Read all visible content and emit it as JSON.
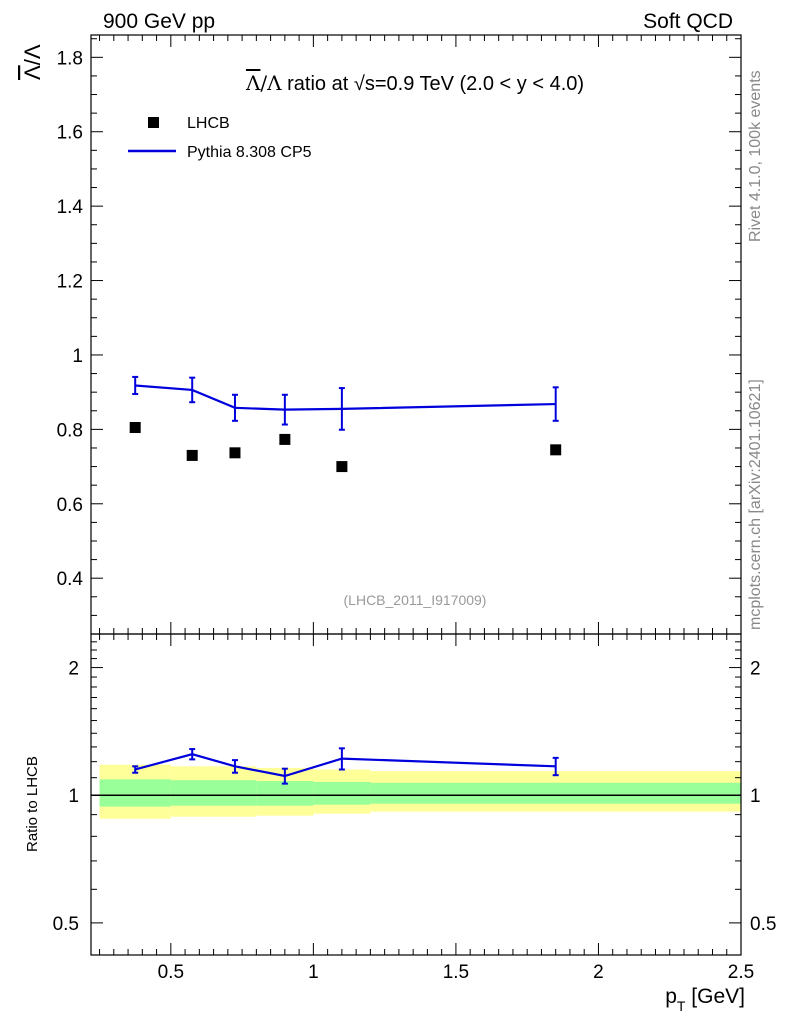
{
  "header": {
    "left": "900 GeV pp",
    "right": "Soft QCD"
  },
  "side_text": {
    "rivet": "Rivet 4.1.0,  100k events",
    "source": "mcplots.cern.ch [arXiv:2401.10621]"
  },
  "chart_data": [
    {
      "type": "scatter",
      "panel": "main",
      "title_main": "ratio at ",
      "title_sqrt": "√",
      "title_tail": "s=0.9 TeV (2.0 < y < 4.0)",
      "ylabel_main": "Λ",
      "ylabel_rest": "/Λ",
      "watermark": "(LHCB_2011_I917009)",
      "xlim": [
        0.22,
        2.5
      ],
      "ylim": [
        0.25,
        1.86
      ],
      "yticks": [
        0.4,
        0.6,
        0.8,
        1.0,
        1.2,
        1.4,
        1.6,
        1.8
      ],
      "ytick_labels": [
        "0.4",
        "0.6",
        "0.8",
        "1",
        "1.2",
        "1.4",
        "1.6",
        "1.8"
      ],
      "legend": {
        "position": "top-left",
        "data_label": "LHCB",
        "mc_label": "Pythia 8.308 CP5"
      },
      "series": [
        {
          "name": "LHCB",
          "style": "markers",
          "color": "#000000",
          "x": [
            0.375,
            0.575,
            0.725,
            0.9,
            1.1,
            1.85
          ],
          "y": [
            0.805,
            0.73,
            0.737,
            0.773,
            0.7,
            0.745
          ]
        },
        {
          "name": "Pythia 8.308 CP5",
          "style": "line",
          "color": "#0000dd",
          "x": [
            0.375,
            0.575,
            0.725,
            0.9,
            1.1,
            1.85
          ],
          "y": [
            0.918,
            0.906,
            0.858,
            0.853,
            0.855,
            0.868
          ],
          "err": [
            0.023,
            0.033,
            0.035,
            0.04,
            0.056,
            0.045
          ]
        }
      ]
    },
    {
      "type": "line",
      "panel": "ratio",
      "ylabel": "Ratio to LHCB",
      "xlabel_main": "p",
      "xlabel_sub": "T",
      "xlabel_unit": " [GeV]",
      "xlim": [
        0.22,
        2.5
      ],
      "ylim": [
        0.42,
        2.4
      ],
      "log_y": true,
      "xticks": [
        0.5,
        1.0,
        1.5,
        2.0,
        2.5
      ],
      "xtick_labels": [
        "0.5",
        "1",
        "1.5",
        "2",
        "2.5"
      ],
      "yticks": [
        0.5,
        1,
        2
      ],
      "ytick_labels": [
        "0.5",
        "1",
        "2"
      ],
      "bands": {
        "edges": [
          0.25,
          0.5,
          0.8,
          1.0,
          1.2,
          2.5
        ],
        "yellow": [
          [
            0.88,
            1.18
          ],
          [
            0.89,
            1.17
          ],
          [
            0.895,
            1.16
          ],
          [
            0.905,
            1.15
          ],
          [
            0.915,
            1.14
          ]
        ],
        "green": [
          [
            0.94,
            1.09
          ],
          [
            0.945,
            1.085
          ],
          [
            0.945,
            1.08
          ],
          [
            0.95,
            1.075
          ],
          [
            0.955,
            1.07
          ]
        ],
        "yellow_color": "#ffff99",
        "green_color": "#99ff99"
      },
      "series": [
        {
          "name": "Pythia 8.308 CP5 / LHCB",
          "color": "#0000dd",
          "x": [
            0.375,
            0.575,
            0.725,
            0.9,
            1.1,
            1.85
          ],
          "y": [
            1.15,
            1.25,
            1.17,
            1.11,
            1.22,
            1.17
          ],
          "err": [
            0.02,
            0.035,
            0.04,
            0.045,
            0.07,
            0.055
          ]
        }
      ]
    }
  ]
}
